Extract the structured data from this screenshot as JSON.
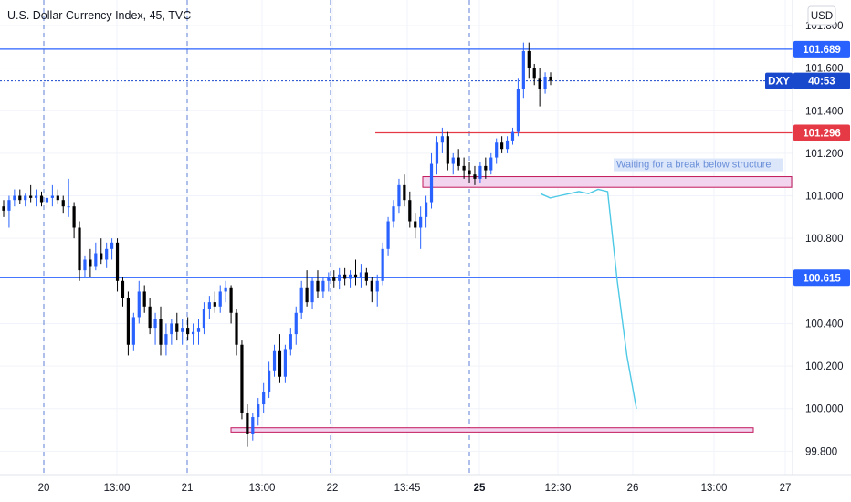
{
  "header": {
    "title": "U.S. Dollar Currency Index, 45, TVC",
    "currency_button": "USD"
  },
  "colors": {
    "bull": "#2962ff",
    "bear": "#000000",
    "blue_line": "#2962ff",
    "red_line": "#e53946",
    "grid": "#f0f3fa",
    "session_line": "#5b7fd6",
    "box_fill": "#f2d4ef",
    "box_border": "#c2185b",
    "projection": "#4dc9e6",
    "dxy_tag": "#1848cc",
    "axis_text": "#131722"
  },
  "price_axis": {
    "ticks": [
      "101.800",
      "101.600",
      "101.400",
      "101.200",
      "101.000",
      "100.800",
      "100.400",
      "100.200",
      "100.000",
      "99.800"
    ],
    "tick_values": [
      101.8,
      101.6,
      101.4,
      101.2,
      101.0,
      100.8,
      100.4,
      100.2,
      100.0,
      99.8
    ]
  },
  "time_axis": {
    "labels": [
      {
        "text": "20",
        "bold": false
      },
      {
        "text": "13:00",
        "bold": false
      },
      {
        "text": "21",
        "bold": false
      },
      {
        "text": "13:00",
        "bold": false
      },
      {
        "text": "22",
        "bold": false
      },
      {
        "text": "13:45",
        "bold": false
      },
      {
        "text": "25",
        "bold": true
      },
      {
        "text": "12:30",
        "bold": false
      },
      {
        "text": "26",
        "bold": false
      },
      {
        "text": "13:00",
        "bold": false
      },
      {
        "text": "27",
        "bold": false
      }
    ]
  },
  "price_labels": {
    "upper_blue": "101.689",
    "upper_blue_value": 101.689,
    "dxy_symbol": "DXY",
    "dxy_countdown": "40:53",
    "dxy_value": 101.54,
    "red": "101.296",
    "red_value": 101.296,
    "lower_blue": "100.615",
    "lower_blue_value": 100.615
  },
  "annotations": {
    "note_text": "Waiting for a break below structure",
    "structure_box": [
      101.04,
      101.09
    ],
    "support_box": [
      99.89,
      99.91
    ],
    "projection": [
      [
        101.01,
        0
      ],
      [
        100.99,
        1
      ],
      [
        101.0,
        2
      ],
      [
        101.01,
        3
      ],
      [
        101.02,
        4
      ],
      [
        101.01,
        5
      ],
      [
        101.03,
        6
      ],
      [
        101.02,
        7
      ],
      [
        100.6,
        8
      ],
      [
        100.25,
        9
      ],
      [
        100.0,
        10
      ]
    ]
  },
  "chart_data": {
    "type": "candlestick",
    "title": "U.S. Dollar Currency Index, 45, TVC",
    "xlabel": "",
    "ylabel": "",
    "ylim": [
      99.69,
      101.92
    ],
    "ohlc": [
      [
        100.95,
        100.98,
        100.9,
        100.93
      ],
      [
        100.93,
        101.0,
        100.85,
        100.98
      ],
      [
        100.98,
        101.03,
        100.95,
        101.0
      ],
      [
        101.0,
        101.03,
        100.96,
        100.98
      ],
      [
        100.98,
        101.01,
        100.95,
        101.0
      ],
      [
        101.0,
        101.05,
        100.97,
        100.99
      ],
      [
        100.99,
        101.03,
        100.95,
        101.0
      ],
      [
        101.0,
        101.02,
        100.95,
        100.97
      ],
      [
        100.97,
        101.01,
        100.94,
        100.99
      ],
      [
        100.99,
        101.05,
        100.95,
        101.0
      ],
      [
        101.0,
        101.03,
        100.96,
        100.98
      ],
      [
        100.98,
        101.0,
        100.92,
        100.95
      ],
      [
        100.95,
        101.08,
        100.9,
        100.95
      ],
      [
        100.95,
        100.97,
        100.8,
        100.85
      ],
      [
        100.85,
        100.88,
        100.6,
        100.65
      ],
      [
        100.65,
        100.72,
        100.62,
        100.7
      ],
      [
        100.7,
        100.75,
        100.62,
        100.67
      ],
      [
        100.67,
        100.78,
        100.65,
        100.73
      ],
      [
        100.73,
        100.8,
        100.68,
        100.7
      ],
      [
        100.7,
        100.78,
        100.66,
        100.75
      ],
      [
        100.75,
        100.8,
        100.7,
        100.78
      ],
      [
        100.78,
        100.8,
        100.55,
        100.6
      ],
      [
        100.6,
        100.62,
        100.48,
        100.52
      ],
      [
        100.52,
        100.55,
        100.25,
        100.3
      ],
      [
        100.3,
        100.45,
        100.27,
        100.43
      ],
      [
        100.43,
        100.6,
        100.4,
        100.55
      ],
      [
        100.55,
        100.58,
        100.45,
        100.48
      ],
      [
        100.48,
        100.52,
        100.35,
        100.38
      ],
      [
        100.38,
        100.45,
        100.3,
        100.42
      ],
      [
        100.42,
        100.48,
        100.25,
        100.3
      ],
      [
        100.3,
        100.4,
        100.25,
        100.35
      ],
      [
        100.35,
        100.42,
        100.3,
        100.4
      ],
      [
        100.4,
        100.45,
        100.32,
        100.36
      ],
      [
        100.36,
        100.42,
        100.3,
        100.38
      ],
      [
        100.38,
        100.43,
        100.32,
        100.35
      ],
      [
        100.35,
        100.4,
        100.3,
        100.36
      ],
      [
        100.36,
        100.42,
        100.3,
        100.38
      ],
      [
        100.38,
        100.5,
        100.35,
        100.47
      ],
      [
        100.47,
        100.53,
        100.42,
        100.5
      ],
      [
        100.5,
        100.55,
        100.45,
        100.48
      ],
      [
        100.48,
        100.58,
        100.45,
        100.55
      ],
      [
        100.55,
        100.6,
        100.5,
        100.57
      ],
      [
        100.57,
        100.58,
        100.4,
        100.45
      ],
      [
        100.45,
        100.47,
        100.25,
        100.3
      ],
      [
        100.3,
        100.32,
        99.95,
        99.98
      ],
      [
        99.98,
        100.02,
        99.82,
        99.88
      ],
      [
        99.88,
        99.98,
        99.85,
        99.96
      ],
      [
        99.96,
        100.05,
        99.92,
        100.02
      ],
      [
        100.02,
        100.12,
        99.98,
        100.08
      ],
      [
        100.08,
        100.22,
        100.05,
        100.18
      ],
      [
        100.18,
        100.3,
        100.15,
        100.27
      ],
      [
        100.27,
        100.35,
        100.12,
        100.15
      ],
      [
        100.15,
        100.3,
        100.12,
        100.28
      ],
      [
        100.28,
        100.38,
        100.25,
        100.35
      ],
      [
        100.35,
        100.48,
        100.3,
        100.45
      ],
      [
        100.45,
        100.6,
        100.42,
        100.57
      ],
      [
        100.57,
        100.65,
        100.48,
        100.5
      ],
      [
        100.5,
        100.62,
        100.47,
        100.6
      ],
      [
        100.6,
        100.65,
        100.52,
        100.55
      ],
      [
        100.55,
        100.62,
        100.52,
        100.6
      ],
      [
        100.6,
        100.64,
        100.55,
        100.62
      ],
      [
        100.62,
        100.65,
        100.57,
        100.6
      ],
      [
        100.6,
        100.66,
        100.56,
        100.63
      ],
      [
        100.63,
        100.66,
        100.58,
        100.61
      ],
      [
        100.61,
        100.65,
        100.57,
        100.63
      ],
      [
        100.63,
        100.7,
        100.58,
        100.62
      ],
      [
        100.62,
        100.68,
        100.57,
        100.64
      ],
      [
        100.64,
        100.66,
        100.58,
        100.6
      ],
      [
        100.6,
        100.62,
        100.5,
        100.55
      ],
      [
        100.55,
        100.63,
        100.48,
        100.6
      ],
      [
        100.6,
        100.78,
        100.58,
        100.75
      ],
      [
        100.75,
        100.9,
        100.72,
        100.88
      ],
      [
        100.88,
        100.98,
        100.85,
        100.95
      ],
      [
        100.95,
        101.08,
        100.92,
        101.05
      ],
      [
        101.05,
        101.1,
        100.95,
        100.98
      ],
      [
        100.98,
        101.02,
        100.85,
        100.88
      ],
      [
        100.88,
        100.92,
        100.8,
        100.85
      ],
      [
        100.85,
        100.95,
        100.75,
        100.9
      ],
      [
        100.9,
        101.0,
        100.85,
        100.97
      ],
      [
        100.97,
        101.2,
        100.94,
        101.15
      ],
      [
        101.15,
        101.28,
        101.1,
        101.25
      ],
      [
        101.25,
        101.32,
        101.2,
        101.28
      ],
      [
        101.28,
        101.3,
        101.12,
        101.15
      ],
      [
        101.15,
        101.2,
        101.1,
        101.18
      ],
      [
        101.18,
        101.22,
        101.12,
        101.14
      ],
      [
        101.14,
        101.18,
        101.08,
        101.12
      ],
      [
        101.12,
        101.16,
        101.06,
        101.1
      ],
      [
        101.1,
        101.14,
        101.05,
        101.08
      ],
      [
        101.08,
        101.16,
        101.06,
        101.14
      ],
      [
        101.14,
        101.18,
        101.08,
        101.12
      ],
      [
        101.12,
        101.2,
        101.1,
        101.18
      ],
      [
        101.18,
        101.27,
        101.15,
        101.25
      ],
      [
        101.25,
        101.28,
        101.2,
        101.22
      ],
      [
        101.22,
        101.28,
        101.2,
        101.26
      ],
      [
        101.26,
        101.32,
        101.24,
        101.3
      ],
      [
        101.3,
        101.55,
        101.28,
        101.5
      ],
      [
        101.5,
        101.72,
        101.46,
        101.68
      ],
      [
        101.68,
        101.72,
        101.55,
        101.6
      ],
      [
        101.6,
        101.62,
        101.52,
        101.55
      ],
      [
        101.55,
        101.6,
        101.42,
        101.5
      ],
      [
        101.5,
        101.58,
        101.48,
        101.56
      ],
      [
        101.56,
        101.58,
        101.52,
        101.54
      ]
    ]
  }
}
